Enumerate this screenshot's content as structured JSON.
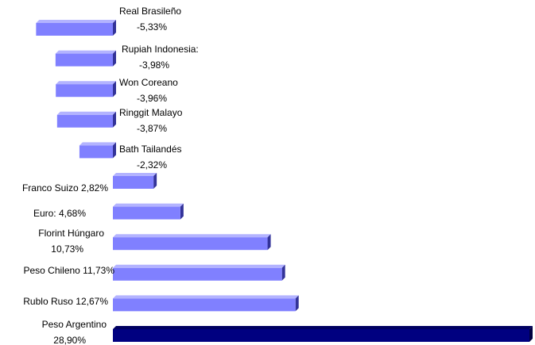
{
  "chart_data": {
    "type": "bar",
    "orientation": "horizontal",
    "title": "",
    "xlabel": "",
    "ylabel": "",
    "grid": false,
    "legend": "none",
    "xlim": [
      -5.33,
      28.9
    ],
    "categories": [
      "Real Brasileño",
      "Rupiah Indonesia",
      "Won Coreano",
      "Ringgit Malayo",
      "Bath Tailandés",
      "Franco Suizo",
      "Euro",
      "Florint Húngaro",
      "Peso Chileno",
      "Rublo Ruso",
      "Peso Argentino"
    ],
    "values": [
      -5.33,
      -3.98,
      -3.96,
      -3.87,
      -2.32,
      2.82,
      4.68,
      10.73,
      11.73,
      12.67,
      28.9
    ],
    "label_lines": [
      [
        "Real Brasileño",
        "-5,33%"
      ],
      [
        "Rupiah Indonesia:",
        "-3,98%"
      ],
      [
        "Won Coreano",
        "-3,96%"
      ],
      [
        "Ringgit Malayo",
        "-3,87%"
      ],
      [
        "Bath Tailandés",
        "-2,32%"
      ],
      [
        "Franco Suizo 2,82%"
      ],
      [
        "Euro: 4,68%"
      ],
      [
        "Florint Húngaro",
        "10,73%"
      ],
      [
        "Peso Chileno 11,73%"
      ],
      [
        "Rublo Ruso 12,67%"
      ],
      [
        "Peso Argentino",
        "28,90%"
      ]
    ],
    "colors": {
      "bar": "#8080ff",
      "bar_top": "#b3b3ff",
      "bar_side": "#333399",
      "highlight": "#000080",
      "highlight_top": "#000060",
      "highlight_side": "#000040"
    },
    "highlight_category": "Peso Argentino"
  }
}
